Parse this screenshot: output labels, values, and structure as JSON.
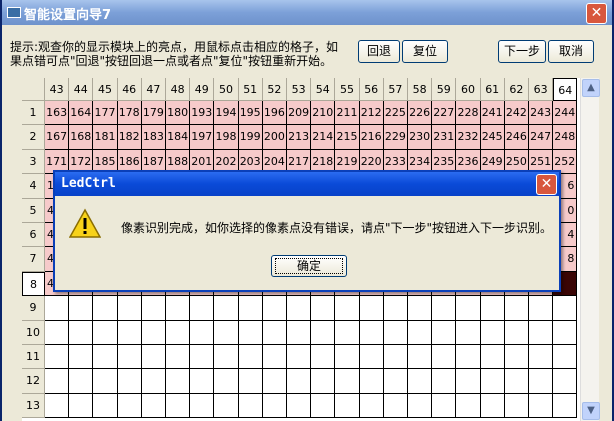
{
  "window": {
    "title": "智能设置向导7"
  },
  "instructions": [
    "提示:观查你的显示模块上的亮点，用鼠标点击相应的格子，如",
    "果点错可点\"回退\"按钮回退一点或者点\"复位\"按钮重新开始。"
  ],
  "buttons": {
    "back": "回退",
    "reset": "复位",
    "next": "下一步",
    "cancel": "取消"
  },
  "grid": {
    "columns": [
      43,
      44,
      45,
      46,
      47,
      48,
      49,
      50,
      51,
      52,
      53,
      54,
      55,
      56,
      57,
      58,
      59,
      60,
      61,
      62,
      63,
      64
    ],
    "rows": [
      {
        "label": 1,
        "cells": [
          163,
          164,
          177,
          178,
          179,
          180,
          193,
          194,
          195,
          196,
          209,
          210,
          211,
          212,
          225,
          226,
          227,
          228,
          241,
          242,
          243,
          244
        ]
      },
      {
        "label": 2,
        "cells": [
          167,
          168,
          181,
          182,
          183,
          184,
          197,
          198,
          199,
          200,
          213,
          214,
          215,
          216,
          229,
          230,
          231,
          232,
          245,
          246,
          247,
          248
        ]
      },
      {
        "label": 3,
        "cells": [
          171,
          172,
          185,
          186,
          187,
          188,
          201,
          202,
          203,
          204,
          217,
          218,
          219,
          220,
          233,
          234,
          235,
          236,
          249,
          250,
          251,
          252
        ]
      },
      {
        "label": 4,
        "first": "1",
        "last": "6"
      },
      {
        "label": 5,
        "first": "4",
        "last": "0"
      },
      {
        "label": 6,
        "first": "4",
        "last": "4"
      },
      {
        "label": 7,
        "first": "4",
        "last": "8"
      },
      {
        "label": 8,
        "first": "4"
      },
      {
        "label": 9
      },
      {
        "label": 10
      },
      {
        "label": 11
      },
      {
        "label": 12
      },
      {
        "label": 13
      }
    ]
  },
  "dialog": {
    "title": "LedCtrl",
    "message": "像素识别完成，如你选择的像素点没有错误，请点\"下一步\"按钮进入下一步识别。",
    "ok": "确定"
  }
}
